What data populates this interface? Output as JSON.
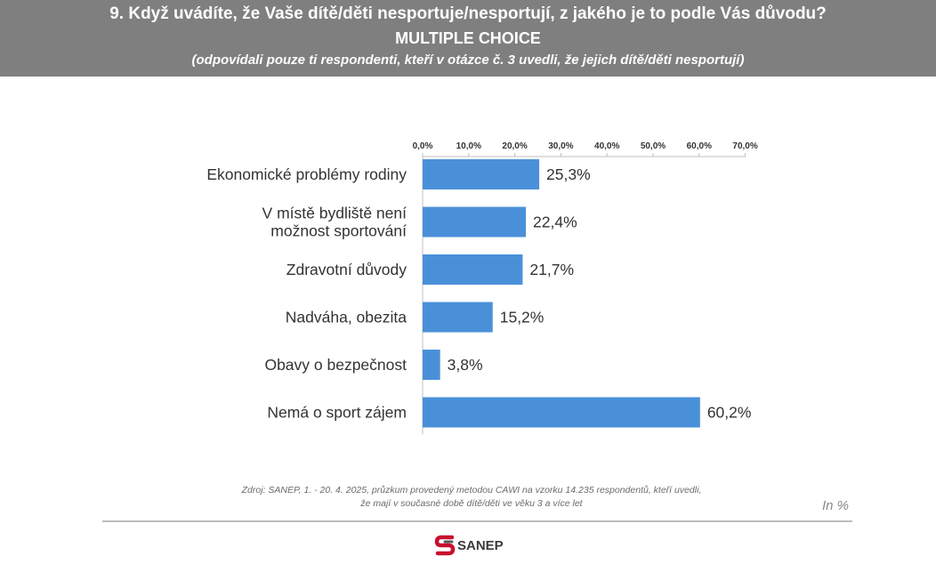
{
  "header": {
    "title": "9. Když uvádíte, že Vaše dítě/děti nesportuje/nesportují, z jakého je to podle Vás důvodu?",
    "subtitle": "MULTIPLE CHOICE",
    "note": "(odpovídali pouze ti respondenti, kteří v otázce č. 3 uvedli, že jejich dítě/děti nesportují)"
  },
  "chart_data": {
    "type": "bar",
    "orientation": "horizontal",
    "axis_position": "top",
    "grid": false,
    "xlim": [
      0,
      70
    ],
    "ticks": [
      "0,0%",
      "10,0%",
      "20,0%",
      "30,0%",
      "40,0%",
      "50,0%",
      "60,0%",
      "70,0%"
    ],
    "categories": [
      [
        "Ekonomické problémy rodiny"
      ],
      [
        "V místě bydliště není",
        "možnost sportování"
      ],
      [
        "Zdravotní důvody"
      ],
      [
        "Nadváha, obezita"
      ],
      [
        "Obavy o bezpečnost"
      ],
      [
        "Nemá o sport zájem"
      ]
    ],
    "values": [
      25.3,
      22.4,
      21.7,
      15.2,
      3.8,
      60.2
    ],
    "value_labels": [
      "25,3%",
      "22,4%",
      "21,7%",
      "15,2%",
      "3,8%",
      "60,2%"
    ],
    "bar_color": "#4a90d9"
  },
  "footer": {
    "source_line1": "Zdroj: SANEP, 1. - 20. 4. 2025, průzkum provedený metodou CAWI na vzorku 14.235 respondentů, kteří uvedli,",
    "source_line2": "že mají v současné době dítě/děti ve věku 3 a více let",
    "unit": "In %",
    "logo": "SANEP"
  }
}
